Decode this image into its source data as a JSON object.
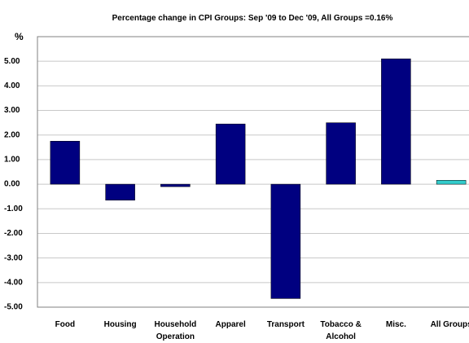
{
  "chart_data": {
    "type": "bar",
    "title": "Percentage change in CPI Groups: Sep '09 to Dec '09, All Groups =0.16%",
    "y_label": "%",
    "categories": [
      "Food",
      "Housing",
      "Household Operation",
      "Apparel",
      "Transport",
      "Tobacco & Alcohol",
      "Misc.",
      "All Groups"
    ],
    "values": [
      1.75,
      -0.65,
      -0.1,
      2.45,
      -4.65,
      2.5,
      5.1,
      0.16
    ],
    "colors": [
      "#000080",
      "#000080",
      "#000080",
      "#000080",
      "#000080",
      "#000080",
      "#000080",
      "#33cccc"
    ],
    "ylim": [
      -5,
      6
    ],
    "yticks": [
      {
        "value": -5,
        "label": "-5.00"
      },
      {
        "value": -4,
        "label": "-4.00"
      },
      {
        "value": -3,
        "label": "-3.00"
      },
      {
        "value": -2,
        "label": "-2.00"
      },
      {
        "value": -1,
        "label": "-1.00"
      },
      {
        "value": 0,
        "label": "0.00"
      },
      {
        "value": 1,
        "label": "1.00"
      },
      {
        "value": 2,
        "label": "2.00"
      },
      {
        "value": 3,
        "label": "3.00"
      },
      {
        "value": 4,
        "label": "4.00"
      },
      {
        "value": 5,
        "label": "5.00"
      }
    ],
    "grid": true
  }
}
